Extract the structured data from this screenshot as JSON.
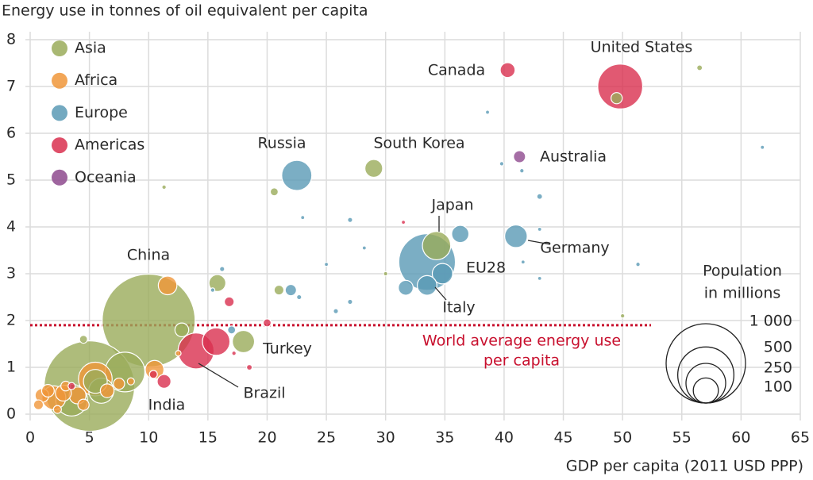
{
  "chart_data": {
    "type": "bubble",
    "title": "Energy use in tonnes of oil equivalent per capita",
    "x_label": "GDP per capita (2011 USD PPP)",
    "xlim": [
      0,
      65
    ],
    "xticks": [
      0,
      5,
      10,
      15,
      20,
      25,
      30,
      35,
      40,
      45,
      50,
      55,
      60,
      65
    ],
    "ylim": [
      0,
      8
    ],
    "yticks": [
      0,
      1,
      2,
      3,
      4,
      5,
      6,
      7,
      8
    ],
    "grid": true,
    "legend": "top-left",
    "series": [
      {
        "name": "Asia",
        "color": "#9aab5a",
        "x": [
          10,
          5,
          34.3,
          29,
          56.5,
          49.5,
          11.3,
          20.6,
          15.8,
          21,
          18,
          12.8,
          8,
          4.5,
          30,
          50,
          3.5,
          6,
          5.5
        ],
        "values": [
          2.0,
          0.6,
          3.6,
          5.25,
          7.4,
          6.75,
          4.85,
          4.75,
          2.8,
          2.65,
          1.55,
          1.8,
          0.9,
          1.6,
          3.0,
          2.1,
          0.3,
          0.5,
          0.7
        ],
        "sizes": [
          1370,
          1300,
          127,
          50,
          5,
          20,
          3,
          10,
          45,
          15,
          78,
          30,
          250,
          10,
          3,
          3,
          160,
          100,
          90
        ],
        "labels": [
          "China",
          "India",
          "Japan",
          "South Korea",
          null,
          null,
          null,
          null,
          null,
          null,
          "Turkey",
          null,
          null,
          null,
          null,
          null,
          null,
          null,
          null
        ]
      },
      {
        "name": "Africa",
        "color": "#f0963a",
        "x": [
          11.6,
          10.5,
          12.5,
          1,
          2,
          5.5,
          2.8,
          4,
          1.5,
          7.5,
          4.5,
          3,
          6.5,
          0.7,
          2.3,
          8.5
        ],
        "values": [
          2.75,
          0.95,
          1.3,
          0.4,
          0.35,
          0.75,
          0.45,
          0.4,
          0.5,
          0.65,
          0.2,
          0.6,
          0.5,
          0.2,
          0.1,
          0.7
        ],
        "sizes": [
          55,
          55,
          5,
          30,
          90,
          180,
          40,
          45,
          25,
          20,
          20,
          15,
          30,
          15,
          10,
          8
        ],
        "labels": [
          null,
          null,
          null,
          null,
          null,
          null,
          null,
          null,
          null,
          null,
          null,
          null,
          null,
          null,
          null,
          null
        ]
      },
      {
        "name": "Europe",
        "color": "#5a9ab5",
        "x": [
          33.5,
          22.5,
          41,
          36.3,
          34.8,
          33.5,
          31.7,
          22,
          38.6,
          39.8,
          41.5,
          43,
          43,
          41.6,
          43,
          51.3,
          61.8,
          27,
          25,
          28.2,
          27,
          25.8,
          22.7,
          16.2,
          15.4,
          17,
          23
        ],
        "values": [
          3.25,
          5.1,
          3.8,
          3.85,
          3.0,
          2.75,
          2.7,
          2.65,
          6.45,
          5.35,
          5.2,
          4.65,
          3.95,
          3.25,
          2.9,
          3.2,
          5.7,
          4.15,
          3.2,
          3.55,
          2.4,
          2.2,
          2.5,
          3.1,
          2.65,
          1.8,
          4.2
        ],
        "sizes": [
          508,
          144,
          81,
          47,
          66,
          61,
          35,
          20,
          1,
          3,
          3,
          5,
          2,
          2,
          2,
          3,
          2,
          4,
          2,
          0.5,
          4,
          4,
          4,
          4,
          3,
          10,
          0.5
        ],
        "labels": [
          "EU28",
          "Russia",
          "Germany",
          null,
          null,
          "Italy",
          null,
          null,
          null,
          null,
          null,
          null,
          null,
          null,
          null,
          null,
          null,
          null,
          null,
          null,
          null,
          null,
          null,
          null,
          null,
          null,
          null
        ]
      },
      {
        "name": "Americas",
        "color": "#d9304f",
        "x": [
          49.8,
          40.3,
          14,
          15.7,
          16.8,
          20,
          18.5,
          11.3,
          10.4,
          31.5,
          3.5,
          17.2
        ],
        "values": [
          7.0,
          7.35,
          1.35,
          1.55,
          2.4,
          1.95,
          1.0,
          0.7,
          0.85,
          4.1,
          0.6,
          1.3
        ],
        "sizes": [
          320,
          35,
          205,
          120,
          15,
          10,
          5,
          30,
          10,
          1,
          8,
          3
        ],
        "labels": [
          "United States",
          "Canada",
          "Brazil",
          null,
          null,
          null,
          null,
          null,
          null,
          null,
          null,
          null
        ]
      },
      {
        "name": "Oceania",
        "color": "#8e4a8e",
        "x": [
          41.3
        ],
        "values": [
          5.5
        ],
        "sizes": [
          23
        ],
        "labels": [
          "Australia"
        ]
      }
    ],
    "reference_line": {
      "value": 1.9,
      "color": "#c8102e",
      "label": [
        "World average energy use",
        "per capita"
      ]
    },
    "size_legend": {
      "title": [
        "Population",
        "in millions"
      ],
      "values": [
        {
          "value": 1000,
          "label": "1 000"
        },
        500,
        250,
        100
      ]
    }
  }
}
